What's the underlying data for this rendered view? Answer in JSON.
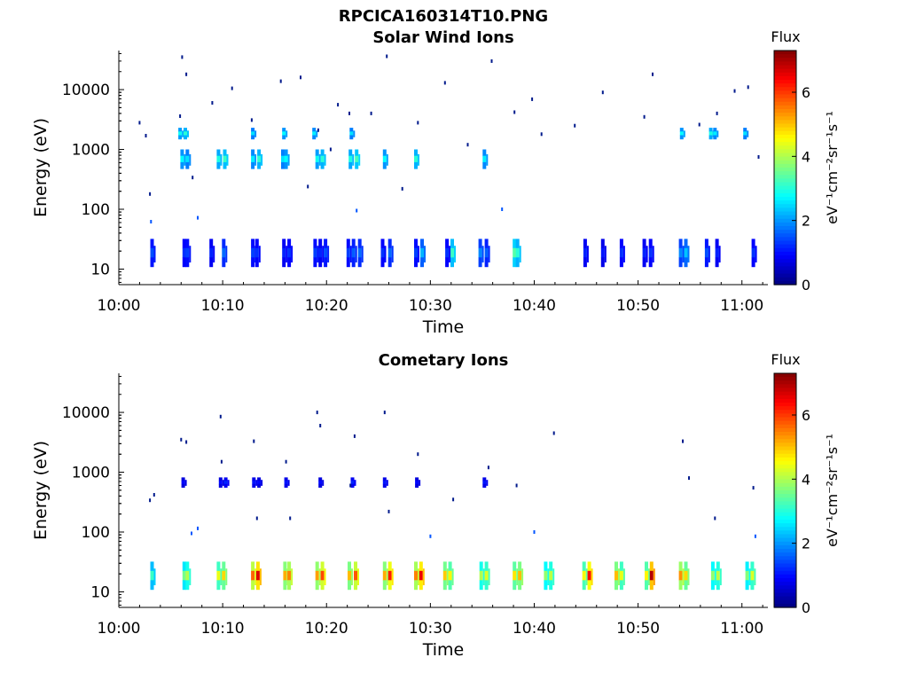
{
  "figure": {
    "title": "RPCICA160314T10.PNG"
  },
  "chart_data": [
    {
      "type": "heatmap",
      "title": "Solar Wind Ions",
      "xlabel": "Time",
      "ylabel": "Energy (eV)",
      "x_ticks": [
        "10:00",
        "10:10",
        "10:20",
        "10:30",
        "10:40",
        "10:50",
        "11:00"
      ],
      "y_ticks": [
        "10",
        "100",
        "1000",
        "10000"
      ],
      "y_scale": "log",
      "ylim": [
        5.5,
        45000
      ],
      "xlim_minutes": [
        0,
        62.5
      ],
      "colorbar": {
        "title": "Flux",
        "label": "eV⁻¹cm⁻²sr⁻¹s⁻¹",
        "ticks": [
          "0",
          "2",
          "4",
          "6"
        ],
        "range": [
          0,
          7.3
        ],
        "colormap": "jet"
      },
      "bands": [
        {
          "name": "low",
          "energy_min": 11,
          "energy_max": 32,
          "minutes": [
            3.2,
            6.3,
            6.6,
            8.9,
            10.1,
            12.9,
            13.3,
            15.9,
            16.4,
            18.9,
            19.4,
            19.9,
            22.1,
            22.6,
            23.2,
            25.4,
            26.1,
            28.6,
            29.2,
            31.6,
            32.1,
            34.8,
            35.4,
            38.1,
            38.4,
            44.9,
            46.6,
            48.4,
            50.6,
            51.2,
            54.1,
            54.6,
            56.6,
            57.6,
            61.1
          ],
          "flux": [
            1.4,
            1.2,
            1.3,
            1.1,
            1.6,
            1.3,
            1.2,
            1.1,
            1.2,
            1.3,
            1.1,
            1.4,
            1.3,
            1.5,
            1.6,
            1.2,
            1.6,
            1.3,
            2.1,
            1.2,
            3.0,
            1.8,
            1.5,
            3.2,
            2.9,
            1.1,
            1.0,
            1.2,
            1.1,
            1.2,
            1.8,
            2.2,
            1.4,
            1.1,
            1.2
          ]
        },
        {
          "name": "mid",
          "energy_min": 480,
          "energy_max": 1000,
          "minutes": [
            6.1,
            6.6,
            9.6,
            10.2,
            12.9,
            13.5,
            15.8,
            16.1,
            19.1,
            19.6,
            22.3,
            22.9,
            25.6,
            28.6,
            35.2
          ],
          "flux": [
            2.6,
            2.4,
            2.8,
            3.0,
            2.5,
            2.9,
            2.4,
            2.6,
            2.7,
            2.9,
            2.8,
            3.1,
            2.6,
            2.9,
            2.5
          ]
        },
        {
          "name": "high",
          "energy_min": 1500,
          "energy_max": 2300,
          "minutes": [
            5.9,
            6.4,
            12.9,
            15.9,
            18.8,
            22.4,
            54.2,
            57.0,
            57.4,
            60.3
          ],
          "flux": [
            2.7,
            2.9,
            2.4,
            2.6,
            2.5,
            2.4,
            2.6,
            2.8,
            2.5,
            2.4
          ]
        }
      ],
      "scatter": [
        {
          "minute": 2.0,
          "energy": 2800
        },
        {
          "minute": 2.6,
          "energy": 1700
        },
        {
          "minute": 3.0,
          "energy": 180
        },
        {
          "minute": 3.1,
          "energy": 62
        },
        {
          "minute": 5.9,
          "energy": 3600
        },
        {
          "minute": 6.1,
          "energy": 35000
        },
        {
          "minute": 6.5,
          "energy": 18000
        },
        {
          "minute": 7.1,
          "energy": 340
        },
        {
          "minute": 7.6,
          "energy": 72
        },
        {
          "minute": 9.0,
          "energy": 6000
        },
        {
          "minute": 10.9,
          "energy": 10500
        },
        {
          "minute": 12.8,
          "energy": 3100
        },
        {
          "minute": 15.6,
          "energy": 13800
        },
        {
          "minute": 17.5,
          "energy": 16000
        },
        {
          "minute": 18.2,
          "energy": 240
        },
        {
          "minute": 19.2,
          "energy": 2100
        },
        {
          "minute": 20.4,
          "energy": 1000
        },
        {
          "minute": 21.1,
          "energy": 5600
        },
        {
          "minute": 22.2,
          "energy": 4000
        },
        {
          "minute": 22.9,
          "energy": 95
        },
        {
          "minute": 24.3,
          "energy": 4000
        },
        {
          "minute": 25.8,
          "energy": 36000
        },
        {
          "minute": 27.3,
          "energy": 220
        },
        {
          "minute": 28.8,
          "energy": 2800
        },
        {
          "minute": 31.4,
          "energy": 13000
        },
        {
          "minute": 33.6,
          "energy": 1200
        },
        {
          "minute": 35.9,
          "energy": 30000
        },
        {
          "minute": 36.9,
          "energy": 100
        },
        {
          "minute": 38.1,
          "energy": 4200
        },
        {
          "minute": 39.8,
          "energy": 6900
        },
        {
          "minute": 40.7,
          "energy": 1800
        },
        {
          "minute": 43.9,
          "energy": 2500
        },
        {
          "minute": 46.6,
          "energy": 9000
        },
        {
          "minute": 50.6,
          "energy": 3500
        },
        {
          "minute": 51.4,
          "energy": 18000
        },
        {
          "minute": 55.9,
          "energy": 2600
        },
        {
          "minute": 57.6,
          "energy": 4000
        },
        {
          "minute": 59.3,
          "energy": 9500
        },
        {
          "minute": 60.6,
          "energy": 11000
        },
        {
          "minute": 61.6,
          "energy": 750
        }
      ]
    },
    {
      "type": "heatmap",
      "title": "Cometary Ions",
      "xlabel": "Time",
      "ylabel": "Energy (eV)",
      "x_ticks": [
        "10:00",
        "10:10",
        "10:20",
        "10:30",
        "10:40",
        "10:50",
        "11:00"
      ],
      "y_ticks": [
        "10",
        "100",
        "1000",
        "10000"
      ],
      "y_scale": "log",
      "ylim": [
        5.5,
        45000
      ],
      "xlim_minutes": [
        0,
        62.5
      ],
      "colorbar": {
        "title": "Flux",
        "label": "eV⁻¹cm⁻²sr⁻¹s⁻¹",
        "ticks": [
          "0",
          "2",
          "4",
          "6"
        ],
        "range": [
          0,
          7.3
        ],
        "colormap": "jet"
      },
      "bands": [
        {
          "name": "low",
          "energy_min": 11,
          "energy_max": 32,
          "minutes": [
            3.2,
            6.3,
            6.6,
            9.6,
            10.1,
            12.9,
            13.4,
            16.0,
            16.4,
            19.1,
            19.6,
            22.2,
            22.8,
            25.6,
            26.1,
            28.6,
            29.1,
            31.4,
            31.9,
            34.9,
            35.4,
            38.1,
            38.6,
            41.1,
            41.6,
            44.8,
            45.3,
            47.9,
            48.4,
            50.8,
            51.3,
            54.1,
            54.6,
            57.2,
            57.7,
            60.5,
            61.0
          ],
          "flux": [
            3.0,
            3.4,
            3.8,
            4.2,
            4.6,
            5.4,
            6.3,
            4.9,
            5.2,
            5.0,
            5.6,
            4.8,
            5.5,
            4.9,
            5.9,
            5.2,
            6.2,
            4.7,
            4.4,
            3.8,
            4.1,
            4.5,
            4.8,
            3.6,
            3.9,
            4.3,
            6.0,
            4.8,
            4.2,
            4.4,
            6.6,
            5.1,
            4.6,
            3.6,
            3.9,
            3.5,
            4.1
          ]
        },
        {
          "name": "mid",
          "energy_min": 560,
          "energy_max": 820,
          "minutes": [
            6.2,
            9.8,
            10.3,
            13.0,
            13.5,
            16.1,
            19.4,
            22.5,
            25.6,
            28.7,
            35.2
          ],
          "flux": [
            0.9,
            0.9,
            1.1,
            1.0,
            0.9,
            1.0,
            0.9,
            1.1,
            1.0,
            0.9,
            1.0
          ]
        }
      ],
      "scatter": [
        {
          "minute": 3.0,
          "energy": 340
        },
        {
          "minute": 3.4,
          "energy": 420
        },
        {
          "minute": 6.0,
          "energy": 3500
        },
        {
          "minute": 6.5,
          "energy": 3200
        },
        {
          "minute": 7.0,
          "energy": 95
        },
        {
          "minute": 7.6,
          "energy": 115
        },
        {
          "minute": 9.8,
          "energy": 8500
        },
        {
          "minute": 9.9,
          "energy": 1500
        },
        {
          "minute": 13.0,
          "energy": 3300
        },
        {
          "minute": 13.3,
          "energy": 170
        },
        {
          "minute": 16.1,
          "energy": 1500
        },
        {
          "minute": 16.5,
          "energy": 170
        },
        {
          "minute": 19.1,
          "energy": 10000
        },
        {
          "minute": 19.4,
          "energy": 6000
        },
        {
          "minute": 22.3,
          "energy": 600
        },
        {
          "minute": 22.7,
          "energy": 4000
        },
        {
          "minute": 25.6,
          "energy": 10000
        },
        {
          "minute": 26.0,
          "energy": 220
        },
        {
          "minute": 28.8,
          "energy": 2000
        },
        {
          "minute": 30.0,
          "energy": 85
        },
        {
          "minute": 32.2,
          "energy": 350
        },
        {
          "minute": 35.6,
          "energy": 1200
        },
        {
          "minute": 38.3,
          "energy": 600
        },
        {
          "minute": 40.0,
          "energy": 100
        },
        {
          "minute": 41.9,
          "energy": 4500
        },
        {
          "minute": 54.3,
          "energy": 3300
        },
        {
          "minute": 54.9,
          "energy": 800
        },
        {
          "minute": 57.4,
          "energy": 170
        },
        {
          "minute": 61.1,
          "energy": 550
        },
        {
          "minute": 61.3,
          "energy": 85
        }
      ]
    }
  ]
}
